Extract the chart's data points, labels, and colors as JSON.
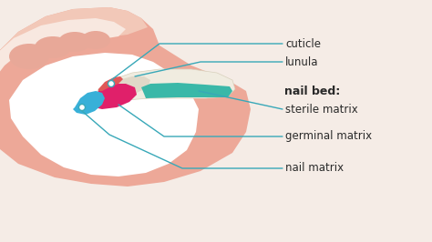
{
  "bg_color": "#f5ece6",
  "skin_light": "#f2c8b8",
  "skin_mid": "#eda898",
  "skin_dark": "#e89080",
  "white_bone": "#ffffff",
  "nail_plate_color": "#f0ece0",
  "lunula_color": "#e0d8c8",
  "cuticle_color": "#e05858",
  "sterile_color": "#3ab8a8",
  "germinal_color": "#e0206a",
  "nail_matrix_color": "#38b0d8",
  "line_color": "#38a8b8",
  "text_color": "#2a2a2a",
  "label_cuticle": "cuticle",
  "label_lunula": "lunula",
  "label_nail_bed": "nail bed:",
  "label_sterile": "sterile matrix",
  "label_germinal": "germinal matrix",
  "label_nail_matrix": "nail matrix",
  "font_size": 8.5,
  "bold_font_size": 9
}
